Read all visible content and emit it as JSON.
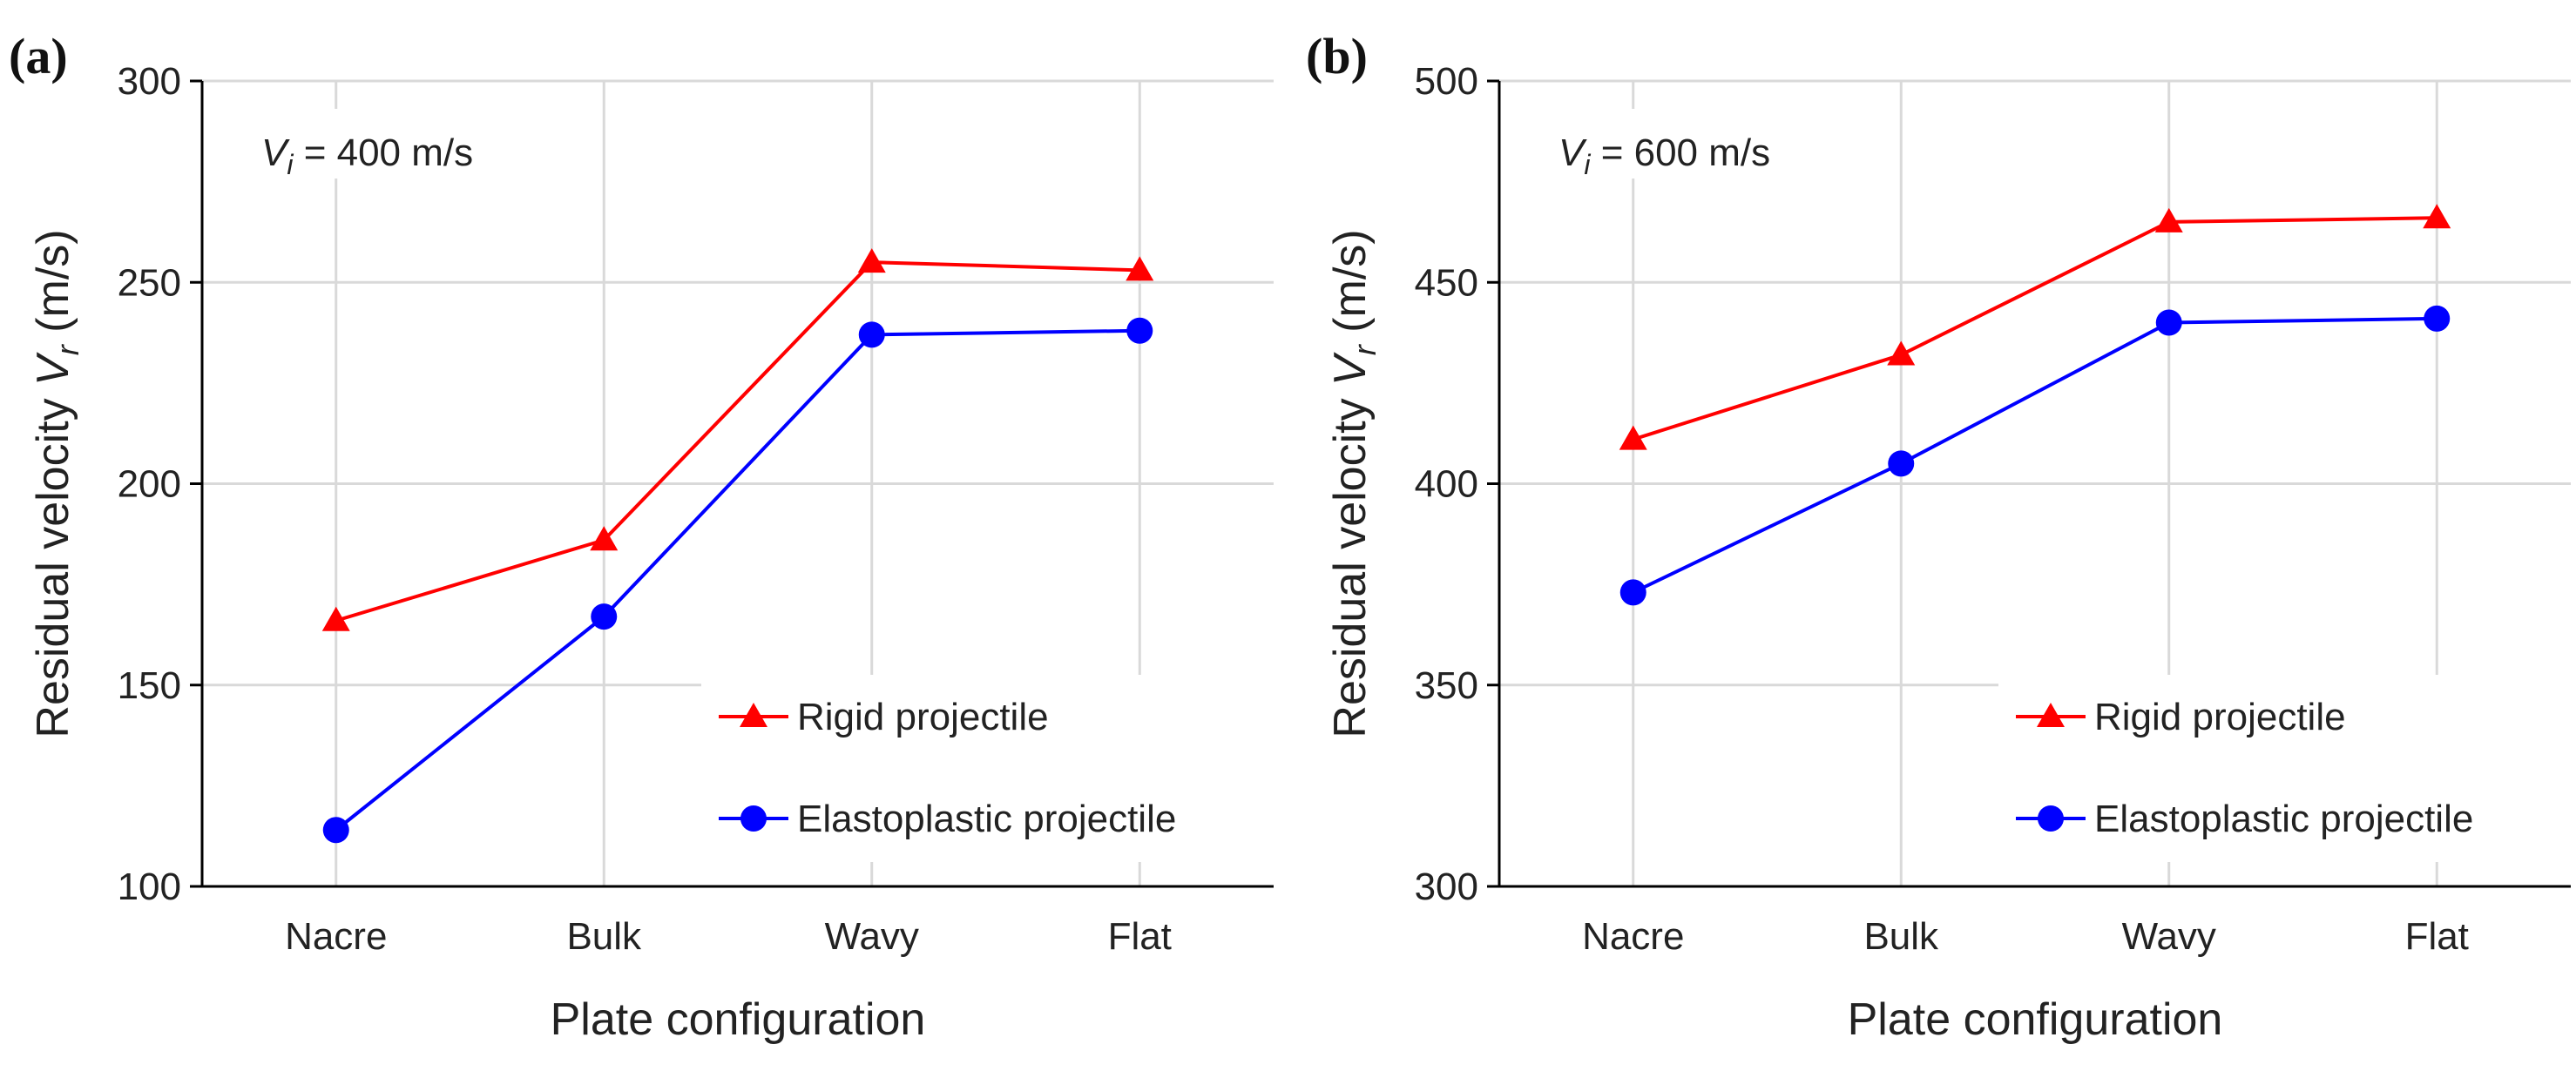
{
  "chart_data": [
    {
      "type": "line",
      "panel_label": "(a)",
      "annotation": {
        "symbol": "V",
        "subscript": "i",
        "text": " = 400 m/s"
      },
      "xlabel": "Plate configuration",
      "ylabel": {
        "text": "Residual velocity ",
        "symbol": "V",
        "subscript": "r",
        "unit": " (m/s)"
      },
      "categories": [
        "Nacre",
        "Bulk",
        "Wavy",
        "Flat"
      ],
      "ylim": [
        100,
        300
      ],
      "yticks": [
        "100",
        "150",
        "200",
        "250",
        "300"
      ],
      "grid": true,
      "legend_position": "bottom-right",
      "series": [
        {
          "name": "Rigid projectile",
          "color": "#ff0000",
          "marker": "triangle",
          "values": [
            166,
            186,
            255,
            253
          ]
        },
        {
          "name": "Elastoplastic projectile",
          "color": "#0000ff",
          "marker": "circle",
          "values": [
            114,
            167,
            237,
            238
          ]
        }
      ]
    },
    {
      "type": "line",
      "panel_label": "(b)",
      "annotation": {
        "symbol": "V",
        "subscript": "i",
        "text": " = 600 m/s"
      },
      "xlabel": "Plate configuration",
      "ylabel": {
        "text": "Residual velocity ",
        "symbol": "V",
        "subscript": "r",
        "unit": " (m/s)"
      },
      "categories": [
        "Nacre",
        "Bulk",
        "Wavy",
        "Flat"
      ],
      "ylim": [
        300,
        500
      ],
      "yticks": [
        "300",
        "350",
        "400",
        "450",
        "500"
      ],
      "grid": true,
      "legend_position": "bottom-right",
      "series": [
        {
          "name": "Rigid projectile",
          "color": "#ff0000",
          "marker": "triangle",
          "values": [
            411,
            432,
            465,
            466
          ]
        },
        {
          "name": "Elastoplastic projectile",
          "color": "#0000ff",
          "marker": "circle",
          "values": [
            373,
            405,
            440,
            441
          ]
        }
      ]
    }
  ]
}
